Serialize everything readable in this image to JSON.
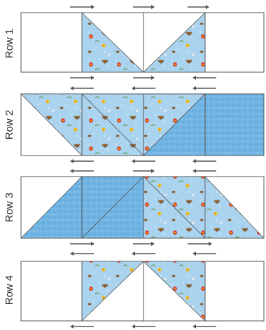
{
  "rows": [
    {
      "label": "Row 1",
      "blocks": [
        "plain",
        "tri-tr-floral",
        "tri-tl-floral",
        "plain"
      ],
      "arrows_above": [
        "right",
        "right",
        "right"
      ],
      "arrows_below": [
        "right",
        "right",
        "left"
      ]
    },
    {
      "label": "Row 2",
      "blocks": [
        "tri-bl-floral",
        "floral",
        "floral-split",
        "blue"
      ],
      "arrows_above": [
        "left",
        "left",
        "left"
      ],
      "arrows_below": [
        "left",
        "left",
        "left"
      ]
    },
    {
      "label": "Row 3",
      "blocks": [
        "tri-br-blue",
        "blue-split",
        "floral-split2",
        "tri-bl-floral"
      ],
      "arrows_above": [
        "left",
        "right",
        "left"
      ],
      "arrows_below": [
        "right",
        "right",
        "right"
      ]
    },
    {
      "label": "Row 4",
      "blocks": [
        "plain",
        "tri-top-floral",
        "tri-top-floral2",
        "plain"
      ],
      "arrows_above": [
        "left",
        "left",
        "left"
      ],
      "arrows_below": [
        "left",
        "left",
        "left"
      ]
    }
  ],
  "colors": {
    "floral_base": "#a9d3ee",
    "blue_base": "#6fb3e3",
    "outline": "#555555",
    "arrow": "#555555",
    "flower_red": "#d9452b",
    "flower_yellow": "#f2c21b",
    "butterfly": "#8a5a2b"
  }
}
